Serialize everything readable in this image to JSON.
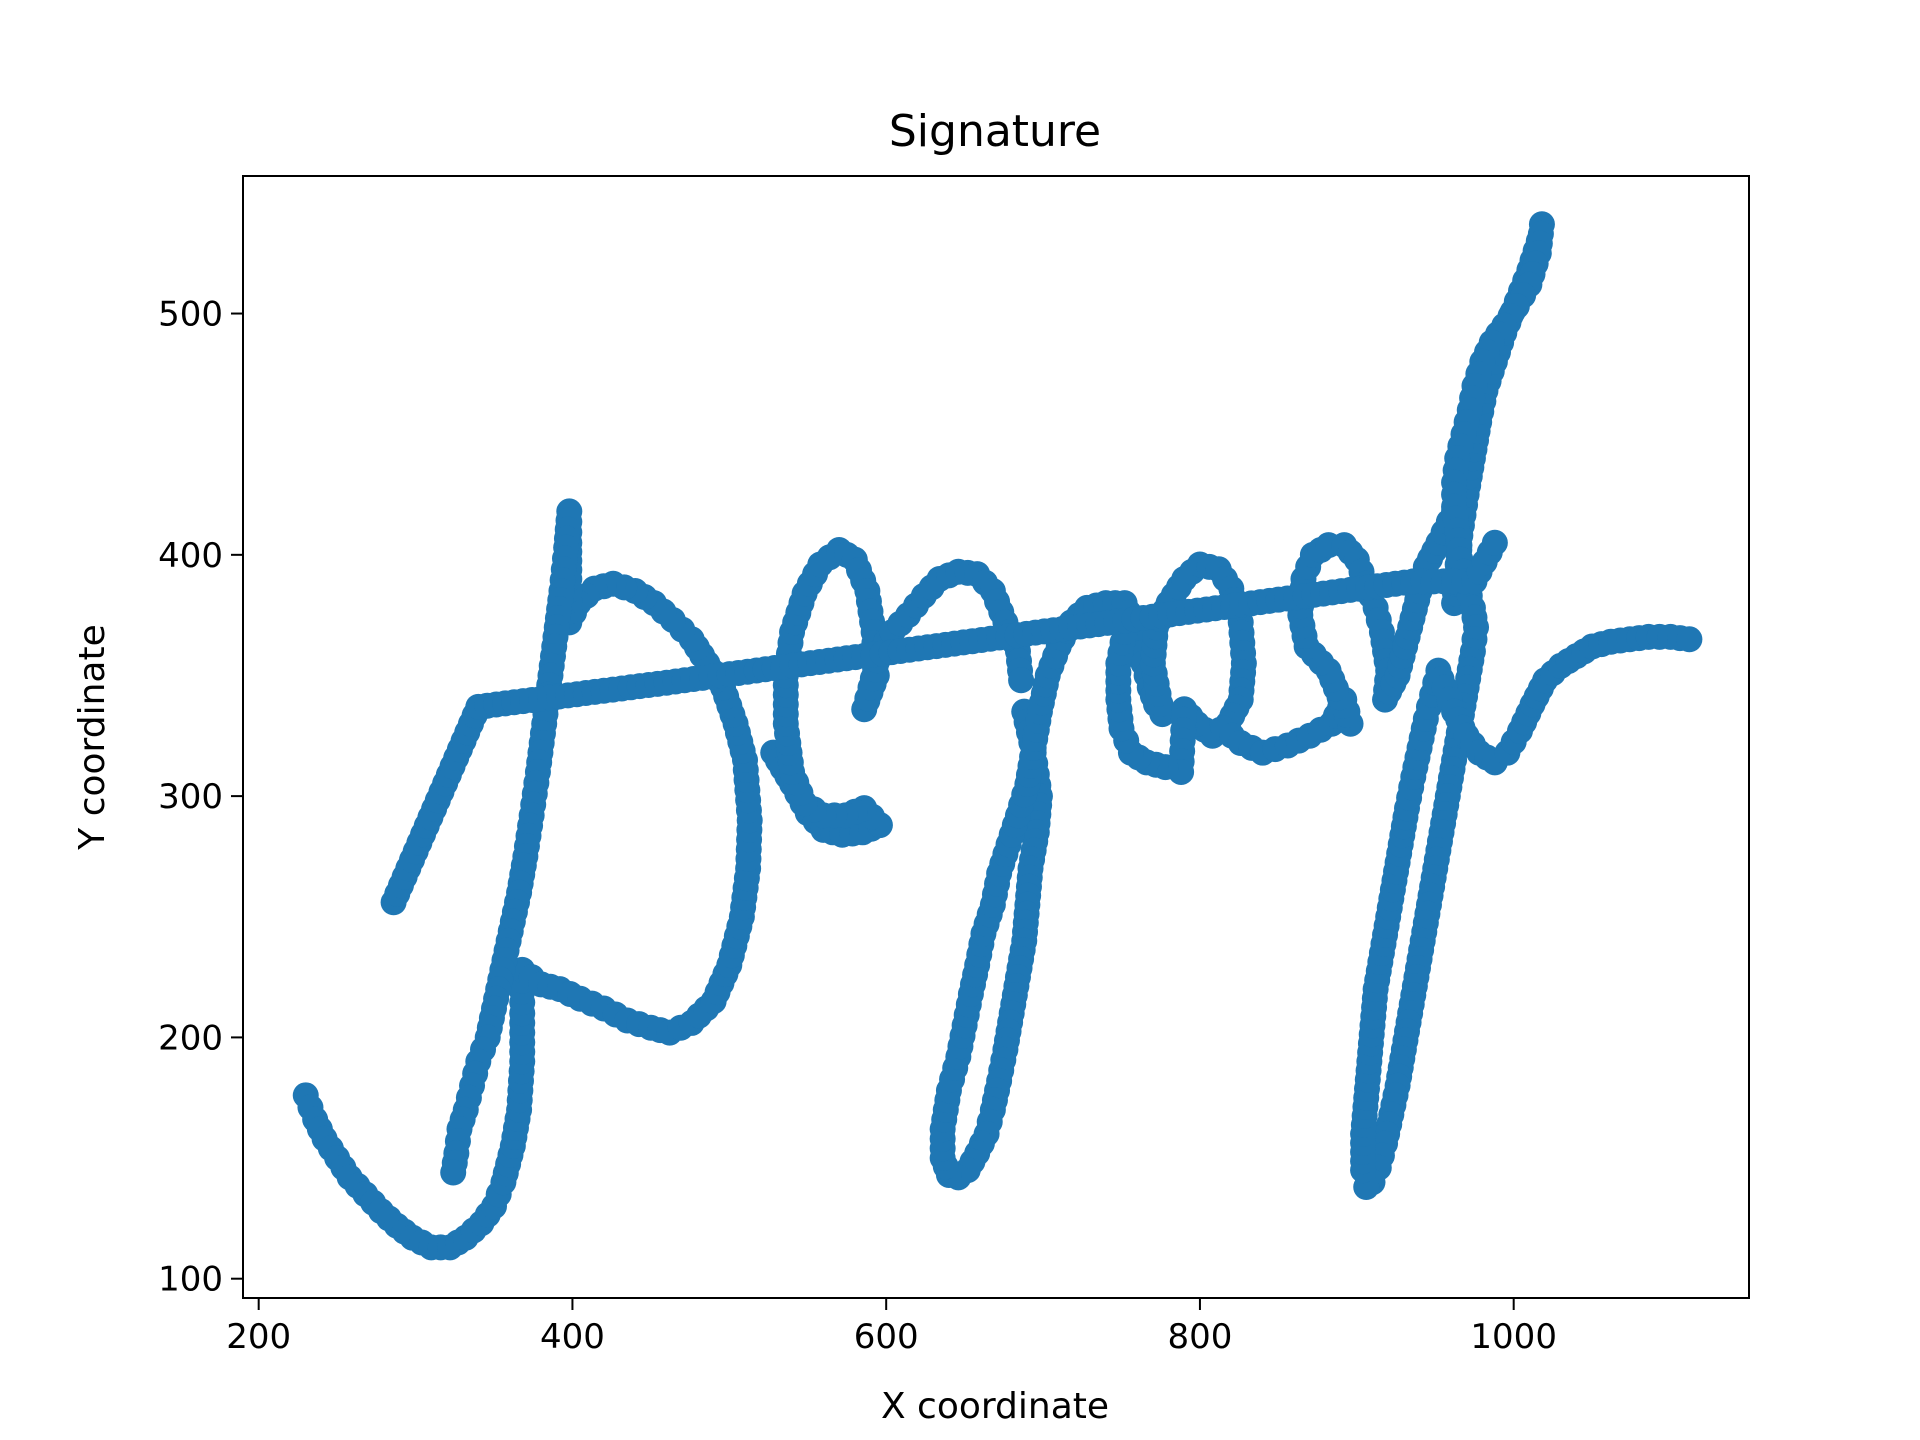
{
  "chart_data": {
    "type": "scatter",
    "title": "Signature",
    "xlabel": "X coordinate",
    "ylabel": "Y coordinate",
    "xlim": [
      190,
      1150
    ],
    "ylim": [
      92,
      557
    ],
    "xticks": [
      200,
      400,
      600,
      800,
      1000
    ],
    "yticks": [
      100,
      200,
      300,
      400,
      500
    ],
    "grid": false,
    "legend": "none",
    "color": "#1f77b4",
    "series": [
      {
        "strokes": [
          [
            [
              230,
              176
            ],
            [
              236,
              166
            ],
            [
              242,
              158
            ],
            [
              250,
              150
            ],
            [
              258,
              142
            ],
            [
              268,
              135
            ],
            [
              278,
              128
            ],
            [
              288,
              122
            ],
            [
              298,
              117
            ],
            [
              310,
              113
            ],
            [
              322,
              113
            ],
            [
              332,
              117
            ],
            [
              342,
              123
            ],
            [
              350,
              130
            ],
            [
              356,
              140
            ],
            [
              362,
              155
            ],
            [
              366,
              170
            ],
            [
              368,
              190
            ],
            [
              368,
              210
            ],
            [
              368,
              228
            ],
            [
              380,
              222
            ],
            [
              392,
              220
            ],
            [
              405,
              216
            ],
            [
              420,
              212
            ],
            [
              435,
              207
            ],
            [
              450,
              204
            ],
            [
              462,
              202
            ],
            [
              476,
              206
            ],
            [
              490,
              215
            ],
            [
              500,
              230
            ],
            [
              508,
              250
            ],
            [
              512,
              270
            ],
            [
              513,
              290
            ],
            [
              510,
              315
            ],
            [
              504,
              330
            ],
            [
              496,
              345
            ],
            [
              486,
              355
            ],
            [
              476,
              365
            ],
            [
              464,
              373
            ],
            [
              452,
              380
            ],
            [
              440,
              385
            ],
            [
              426,
              388
            ],
            [
              414,
              386
            ],
            [
              404,
              380
            ],
            [
              398,
              372
            ],
            [
              398,
              390
            ],
            [
              398,
              405
            ],
            [
              398,
              418
            ],
            [
              396,
              403
            ],
            [
              393,
              385
            ],
            [
              390,
              370
            ],
            [
              386,
              350
            ],
            [
              382,
              330
            ],
            [
              378,
              310
            ],
            [
              374,
              292
            ],
            [
              370,
              275
            ],
            [
              366,
              260
            ],
            [
              362,
              248
            ],
            [
              358,
              236
            ],
            [
              354,
              224
            ],
            [
              350,
              212
            ],
            [
              346,
              200
            ],
            [
              340,
              190
            ],
            [
              336,
              180
            ],
            [
              332,
              170
            ],
            [
              328,
              162
            ],
            [
              326,
              152
            ],
            [
              324,
              144
            ]
          ],
          [
            [
              528,
              318
            ],
            [
              540,
              305
            ],
            [
              550,
              293
            ],
            [
              560,
              286
            ],
            [
              572,
              284
            ],
            [
              585,
              285
            ],
            [
              596,
              288
            ],
            [
              586,
              295
            ],
            [
              574,
              292
            ],
            [
              560,
              292
            ],
            [
              548,
              297
            ],
            [
              540,
              310
            ],
            [
              536,
              330
            ],
            [
              536,
              350
            ],
            [
              540,
              368
            ],
            [
              548,
              384
            ],
            [
              558,
              396
            ],
            [
              570,
              402
            ],
            [
              580,
              398
            ],
            [
              588,
              385
            ],
            [
              592,
              368
            ],
            [
              594,
              350
            ],
            [
              586,
              336
            ],
            [
              590,
              345
            ],
            [
              596,
              360
            ],
            [
              604,
              368
            ],
            [
              614,
              375
            ],
            [
              624,
              383
            ],
            [
              634,
              390
            ],
            [
              646,
              393
            ],
            [
              658,
              392
            ],
            [
              668,
              385
            ],
            [
              676,
              372
            ],
            [
              684,
              360
            ],
            [
              686,
              348
            ]
          ],
          [
            [
              688,
              335
            ],
            [
              694,
              318
            ],
            [
              698,
              300
            ],
            [
              696,
              285
            ],
            [
              692,
              270
            ],
            [
              690,
              255
            ],
            [
              688,
              240
            ],
            [
              684,
              225
            ],
            [
              680,
              210
            ],
            [
              676,
              195
            ],
            [
              672,
              182
            ],
            [
              668,
              170
            ],
            [
              664,
              160
            ],
            [
              658,
              152
            ],
            [
              652,
              145
            ],
            [
              646,
              142
            ],
            [
              640,
              143
            ],
            [
              636,
              150
            ],
            [
              636,
              162
            ],
            [
              640,
              178
            ],
            [
              646,
              192
            ],
            [
              650,
              205
            ],
            [
              654,
              218
            ],
            [
              658,
              230
            ],
            [
              662,
              243
            ],
            [
              668,
              255
            ],
            [
              672,
              268
            ],
            [
              678,
              280
            ],
            [
              684,
              292
            ],
            [
              690,
              305
            ],
            [
              694,
              320
            ],
            [
              698,
              335
            ],
            [
              703,
              350
            ],
            [
              710,
              362
            ],
            [
              718,
              372
            ],
            [
              728,
              378
            ],
            [
              740,
              380
            ],
            [
              752,
              380
            ],
            [
              760,
              368
            ],
            [
              764,
              355
            ],
            [
              768,
              345
            ],
            [
              772,
              338
            ],
            [
              776,
              334
            ],
            [
              770,
              355
            ],
            [
              772,
              370
            ],
            [
              780,
              380
            ],
            [
              790,
              390
            ],
            [
              800,
              396
            ],
            [
              812,
              394
            ],
            [
              820,
              386
            ],
            [
              826,
              372
            ],
            [
              828,
              355
            ],
            [
              826,
              340
            ],
            [
              818,
              330
            ],
            [
              808,
              325
            ],
            [
              798,
              330
            ],
            [
              790,
              336
            ],
            [
              788,
              310
            ],
            [
              778,
              312
            ],
            [
              766,
              314
            ],
            [
              756,
              318
            ],
            [
              750,
              328
            ],
            [
              748,
              340
            ],
            [
              748,
              355
            ],
            [
              752,
              368
            ]
          ],
          [
            [
              815,
              328
            ],
            [
              826,
              322
            ],
            [
              840,
              318
            ],
            [
              856,
              321
            ],
            [
              870,
              325
            ],
            [
              884,
              330
            ],
            [
              892,
              340
            ],
            [
              896,
              330
            ],
            [
              882,
              352
            ],
            [
              868,
              362
            ],
            [
              864,
              375
            ],
            [
              866,
              390
            ],
            [
              872,
              400
            ],
            [
              882,
              404
            ],
            [
              892,
              404
            ],
            [
              900,
              398
            ],
            [
              906,
              388
            ],
            [
              912,
              378
            ],
            [
              916,
              368
            ],
            [
              920,
              352
            ],
            [
              918,
              340
            ],
            [
              926,
              350
            ],
            [
              934,
              370
            ],
            [
              940,
              385
            ],
            [
              944,
              395
            ],
            [
              952,
              405
            ],
            [
              962,
              418
            ]
          ],
          [
            [
              962,
              380
            ],
            [
              966,
              408
            ],
            [
              970,
              425
            ],
            [
              974,
              440
            ],
            [
              978,
              455
            ],
            [
              982,
              468
            ],
            [
              988,
              480
            ],
            [
              994,
              492
            ],
            [
              1002,
              505
            ],
            [
              1010,
              518
            ],
            [
              1016,
              530
            ],
            [
              1018,
              537
            ],
            [
              1016,
              525
            ],
            [
              1010,
              512
            ],
            [
              1002,
              503
            ],
            [
              994,
              495
            ],
            [
              986,
              488
            ],
            [
              980,
              480
            ],
            [
              975,
              470
            ],
            [
              972,
              460
            ],
            [
              968,
              450
            ],
            [
              964,
              440
            ],
            [
              962,
              430
            ],
            [
              962,
              420
            ],
            [
              964,
              410
            ],
            [
              966,
              398
            ],
            [
              970,
              388
            ],
            [
              974,
              378
            ],
            [
              976,
              370
            ],
            [
              974,
              360
            ],
            [
              970,
              345
            ],
            [
              966,
              330
            ],
            [
              962,
              315
            ],
            [
              958,
              300
            ],
            [
              954,
              285
            ],
            [
              950,
              270
            ],
            [
              946,
              255
            ],
            [
              942,
              240
            ],
            [
              938,
              225
            ],
            [
              934,
              210
            ],
            [
              930,
              195
            ],
            [
              926,
              180
            ],
            [
              922,
              168
            ],
            [
              918,
              156
            ],
            [
              914,
              146
            ],
            [
              910,
              140
            ],
            [
              906,
              138
            ],
            [
              904,
              145
            ],
            [
              904,
              160
            ],
            [
              906,
              175
            ],
            [
              908,
              190
            ],
            [
              910,
              205
            ],
            [
              912,
              220
            ],
            [
              916,
              235
            ],
            [
              920,
              250
            ],
            [
              924,
              265
            ],
            [
              928,
              280
            ],
            [
              932,
              295
            ],
            [
              936,
              308
            ],
            [
              940,
              320
            ],
            [
              944,
              332
            ],
            [
              948,
              342
            ],
            [
              952,
              352
            ],
            [
              956,
              345
            ],
            [
              962,
              335
            ],
            [
              970,
              325
            ],
            [
              978,
              318
            ],
            [
              988,
              314
            ],
            [
              996,
              318
            ],
            [
              1004,
              327
            ],
            [
              1012,
              338
            ],
            [
              1020,
              348
            ],
            [
              1030,
              354
            ],
            [
              1040,
              358
            ],
            [
              1050,
              362
            ],
            [
              1062,
              364
            ],
            [
              1074,
              365
            ],
            [
              1086,
              366
            ],
            [
              1100,
              366
            ],
            [
              1112,
              365
            ]
          ],
          [
            [
              286,
              256
            ],
            [
              340,
              337
            ],
            [
              460,
              347
            ],
            [
              936,
              389
            ],
            [
              975,
              389
            ],
            [
              988,
              405
            ]
          ]
        ]
      }
    ]
  }
}
